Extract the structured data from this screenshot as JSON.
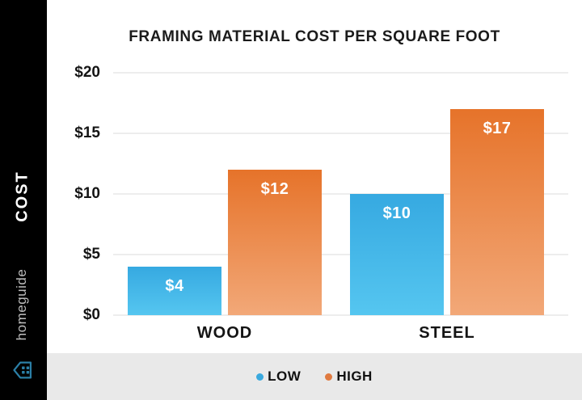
{
  "sidebar": {
    "vertical_label": "COST",
    "brand": "homeguide",
    "background": "#000000",
    "brand_color": "#2B7FA6",
    "label_color": "#FFFFFF",
    "brand_text_color": "#BFBFBF"
  },
  "chart": {
    "title": "FRAMING MATERIAL COST PER SQUARE FOOT",
    "background": "#FFFFFF",
    "gridline_color": "#EDEDED"
  },
  "chart_data": {
    "type": "bar",
    "title": "FRAMING MATERIAL COST PER SQUARE FOOT",
    "categories": [
      "WOOD",
      "STEEL"
    ],
    "series": [
      {
        "name": "LOW",
        "values": [
          4,
          10
        ],
        "value_labels": [
          "$4",
          "$10"
        ],
        "color": "#3BAEE3",
        "gradient_top": "#36A9E1",
        "gradient_bottom": "#55C6F0"
      },
      {
        "name": "HIGH",
        "values": [
          12,
          17
        ],
        "value_labels": [
          "$12",
          "$17"
        ],
        "color": "#E2793F",
        "gradient_top": "#E6732A",
        "gradient_bottom": "#F2A878"
      }
    ],
    "ylabel": "COST",
    "y_ticks": [
      {
        "label": "$0",
        "value": 0
      },
      {
        "label": "$5",
        "value": 5
      },
      {
        "label": "$10",
        "value": 10
      },
      {
        "label": "$15",
        "value": 15
      },
      {
        "label": "$20",
        "value": 20
      }
    ],
    "ylim": [
      0,
      20
    ],
    "grid": true,
    "legend_position": "bottom"
  },
  "legend": {
    "strip_color": "#E9E9E9",
    "items": [
      {
        "label": "LOW",
        "color": "#3AA9DE"
      },
      {
        "label": "HIGH",
        "color": "#E07A40"
      }
    ]
  }
}
